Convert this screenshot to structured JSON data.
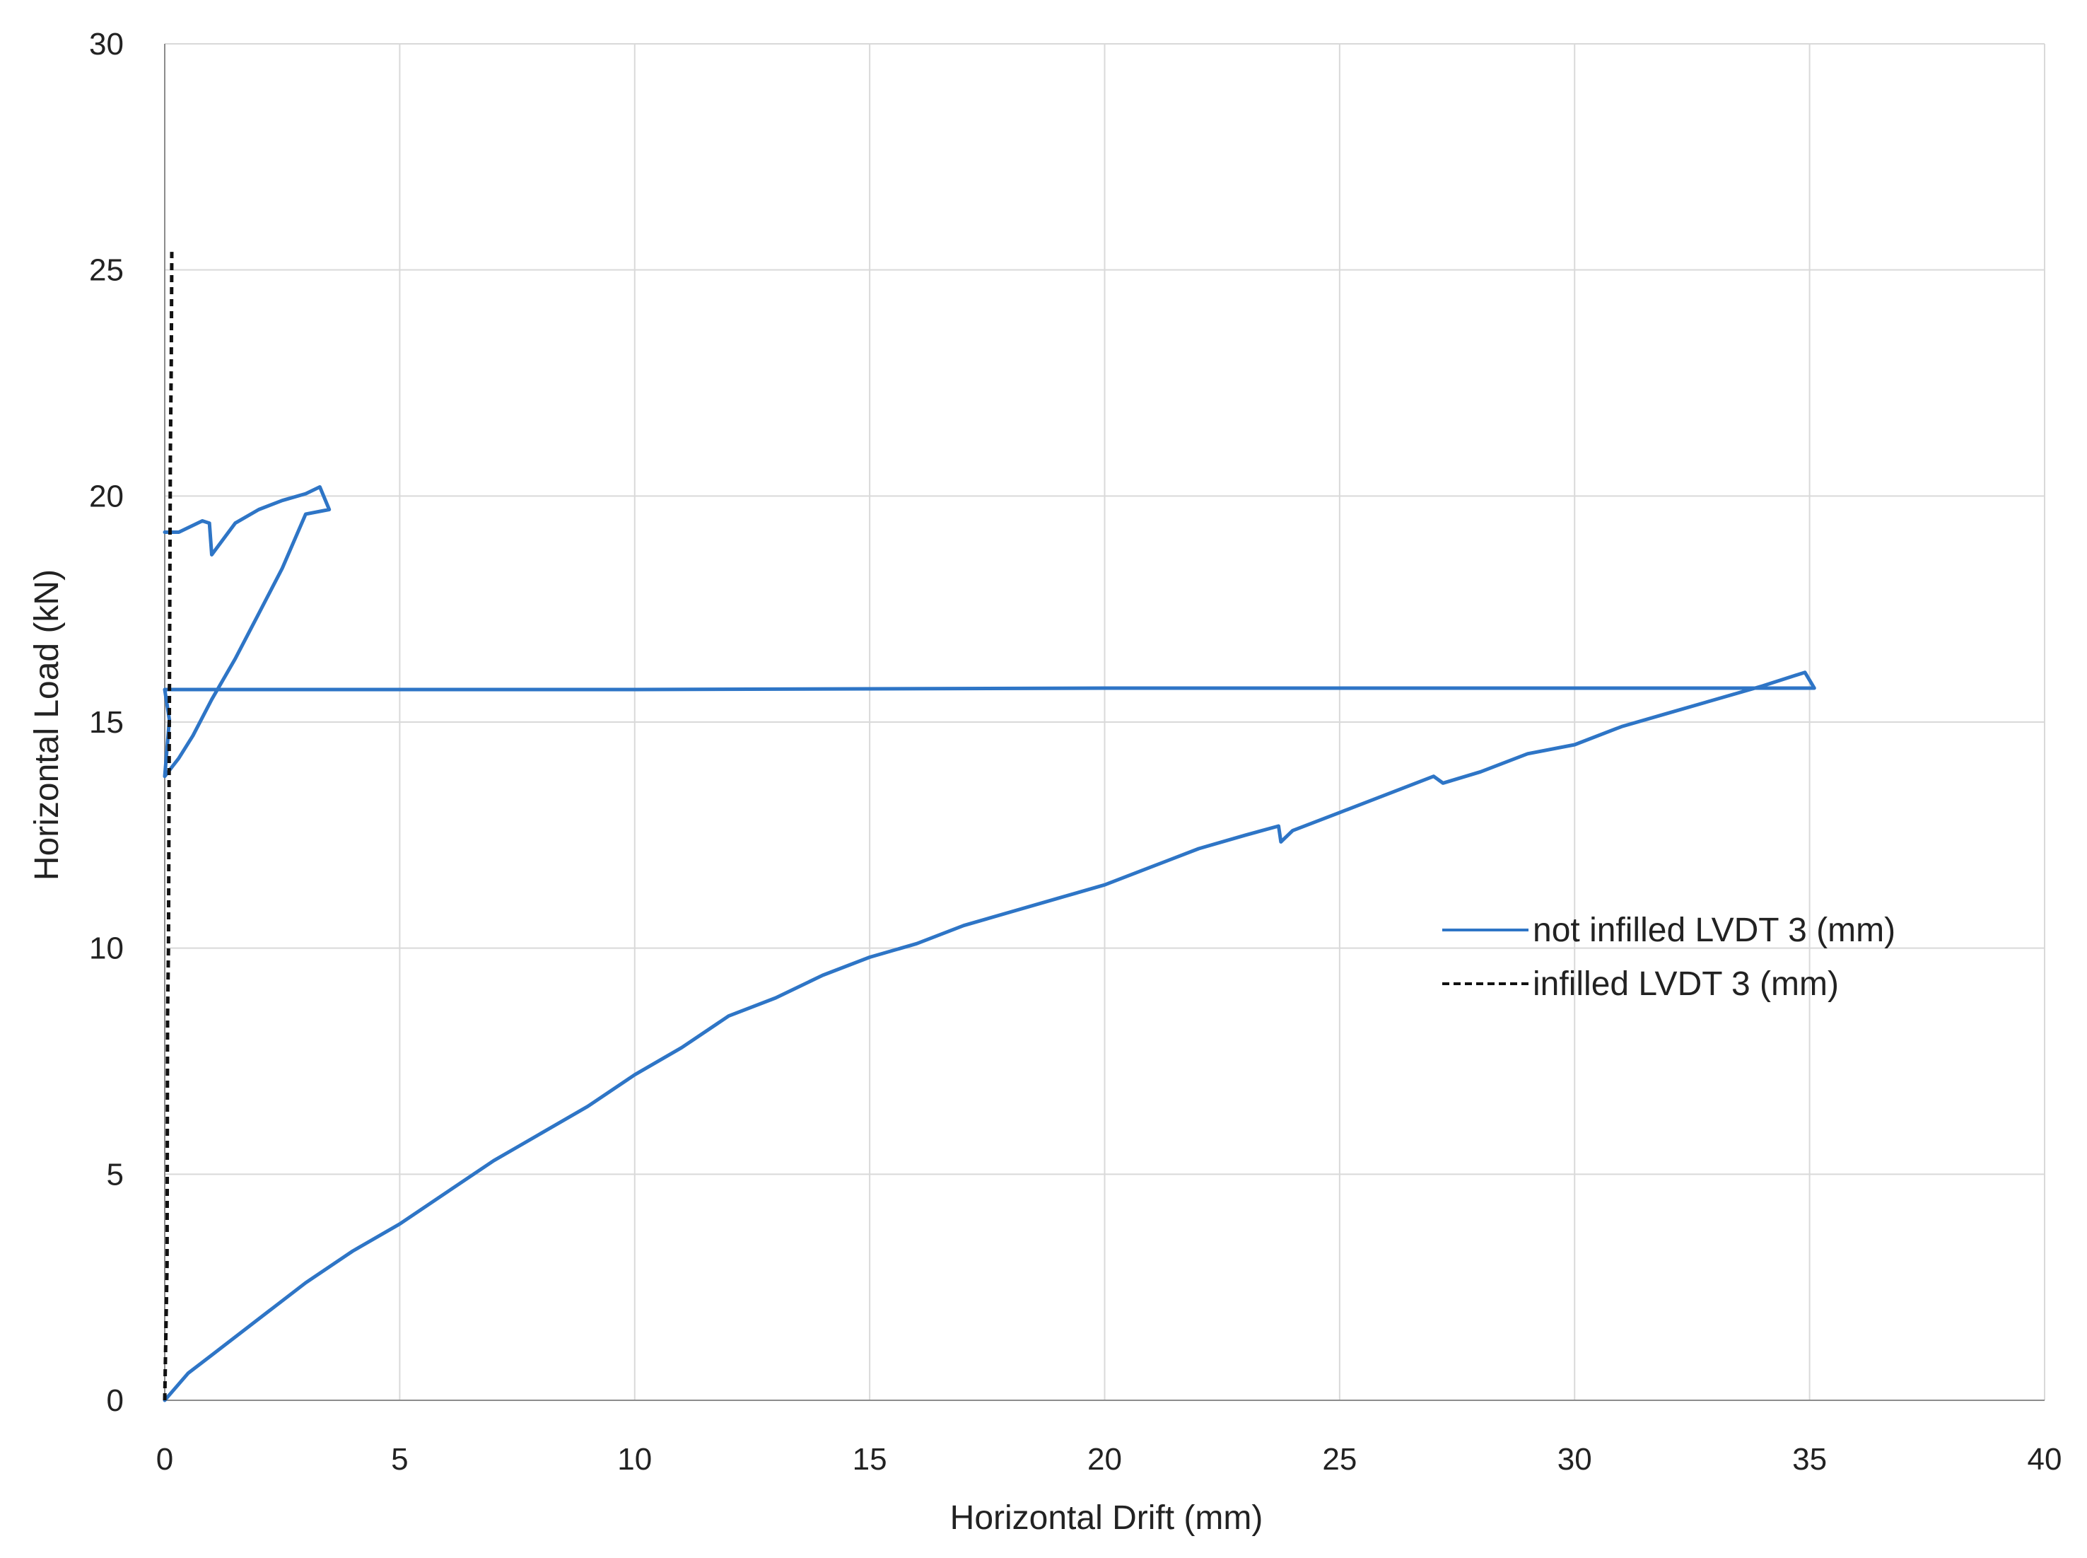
{
  "chart_data": {
    "type": "scatter",
    "title": "",
    "xlabel": "Horizontal Drift (mm)",
    "ylabel": "Horizontal Load (kN)",
    "xlim": [
      0,
      40
    ],
    "ylim": [
      0,
      30
    ],
    "x_ticks": [
      "0",
      "5",
      "10",
      "15",
      "20",
      "25",
      "30",
      "35",
      "40"
    ],
    "y_ticks": [
      "0",
      "5",
      "10",
      "15",
      "20",
      "25",
      "30"
    ],
    "grid": true,
    "legend_position": "right",
    "series": [
      {
        "name": "not infilled LVDT 3 (mm)",
        "color": "#2E75C6",
        "style": "solid",
        "points": [
          [
            0,
            0
          ],
          [
            0.5,
            0.6
          ],
          [
            1,
            1.0
          ],
          [
            2,
            1.8
          ],
          [
            3,
            2.6
          ],
          [
            4,
            3.3
          ],
          [
            5,
            3.9
          ],
          [
            6,
            4.6
          ],
          [
            7,
            5.3
          ],
          [
            7.5,
            5.6
          ],
          [
            8,
            5.9
          ],
          [
            9,
            6.5
          ],
          [
            10,
            7.2
          ],
          [
            11,
            7.8
          ],
          [
            12,
            8.5
          ],
          [
            13,
            8.9
          ],
          [
            14,
            9.4
          ],
          [
            15,
            9.8
          ],
          [
            16,
            10.1
          ],
          [
            17,
            10.5
          ],
          [
            18,
            10.8
          ],
          [
            19,
            11.1
          ],
          [
            20,
            11.4
          ],
          [
            21,
            11.8
          ],
          [
            22,
            12.2
          ],
          [
            23,
            12.5
          ],
          [
            23.7,
            12.7
          ],
          [
            23.75,
            12.35
          ],
          [
            24,
            12.6
          ],
          [
            25,
            13.0
          ],
          [
            26,
            13.4
          ],
          [
            27,
            13.8
          ],
          [
            27.2,
            13.65
          ],
          [
            28,
            13.9
          ],
          [
            29,
            14.3
          ],
          [
            30,
            14.5
          ],
          [
            31,
            14.9
          ],
          [
            32,
            15.2
          ],
          [
            33,
            15.5
          ],
          [
            34,
            15.8
          ],
          [
            34.9,
            16.1
          ],
          [
            35.1,
            15.75
          ],
          [
            30,
            15.75
          ],
          [
            20,
            15.75
          ],
          [
            10,
            15.72
          ],
          [
            5,
            15.72
          ],
          [
            0,
            15.72
          ],
          [
            0.1,
            15.05
          ],
          [
            0,
            13.8
          ],
          [
            0.3,
            14.2
          ],
          [
            0.6,
            14.7
          ],
          [
            1,
            15.5
          ],
          [
            1.5,
            16.4
          ],
          [
            2,
            17.4
          ],
          [
            2.5,
            18.4
          ],
          [
            3,
            19.6
          ],
          [
            3.5,
            19.7
          ],
          [
            3.3,
            20.2
          ],
          [
            3,
            20.05
          ],
          [
            2.5,
            19.9
          ],
          [
            2,
            19.7
          ],
          [
            1.5,
            19.4
          ],
          [
            1,
            18.7
          ],
          [
            0.95,
            19.4
          ],
          [
            0.8,
            19.45
          ],
          [
            0.3,
            19.2
          ],
          [
            0,
            19.2
          ]
        ]
      },
      {
        "name": "infilled LVDT 3 (mm)",
        "color": "#111111",
        "style": "dashed",
        "points": [
          [
            0,
            0
          ],
          [
            0.05,
            3
          ],
          [
            0.06,
            8.5
          ],
          [
            0.08,
            10
          ],
          [
            0.1,
            15.5
          ],
          [
            0.12,
            21
          ],
          [
            0.14,
            23
          ],
          [
            0.15,
            25.4
          ]
        ]
      }
    ]
  }
}
